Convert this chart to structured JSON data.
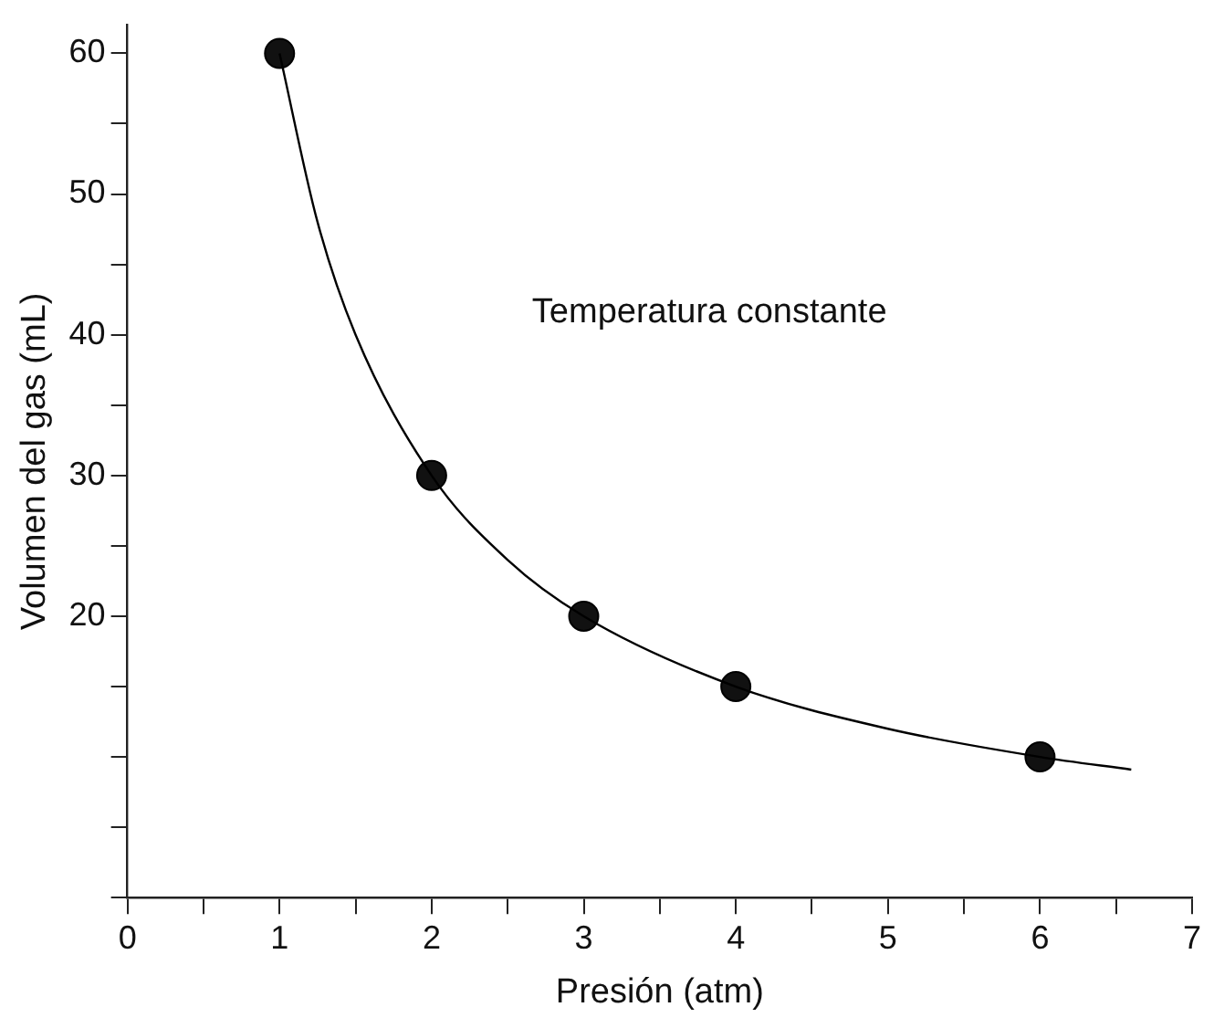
{
  "chart_data": {
    "type": "scatter",
    "xlabel": "Presión (atm)",
    "ylabel": "Volumen del gas (mL)",
    "annotations": [
      "Temperatura constante"
    ],
    "xlim": [
      0,
      7
    ],
    "xticks": [
      0,
      {
        "value": 0.5,
        "label": null
      },
      1,
      {
        "value": 1.5,
        "label": null
      },
      2,
      {
        "value": 2.5,
        "label": null
      },
      3,
      {
        "value": 3.5,
        "label": null
      },
      4,
      {
        "value": 4.5,
        "label": null
      },
      5,
      {
        "value": 5.5,
        "label": null
      },
      6,
      {
        "value": 6.5,
        "label": null
      },
      7
    ],
    "ylim": [
      0,
      62
    ],
    "yticks": [
      {
        "value": 0,
        "label": null
      },
      {
        "value": 5,
        "label": null
      },
      {
        "value": 10,
        "label": null
      },
      {
        "value": 15,
        "label": null
      },
      20,
      {
        "value": 25,
        "label": null
      },
      30,
      {
        "value": 35,
        "label": null
      },
      40,
      {
        "value": 45,
        "label": null
      },
      50,
      {
        "value": 55,
        "label": null
      },
      60
    ],
    "grid": false,
    "legend": false,
    "series": [
      {
        "type": "line",
        "marker": "none",
        "color": "#000000",
        "x": [
          1,
          1.25,
          1.5,
          2,
          2.5,
          3,
          4,
          5,
          6,
          6.6
        ],
        "values": [
          60,
          48,
          40,
          30,
          24,
          20,
          15,
          12,
          10,
          9.1
        ]
      },
      {
        "marker": "circle",
        "color": "#111111",
        "x": [
          1,
          2,
          3,
          4,
          6
        ],
        "values": [
          60,
          30,
          20,
          15,
          10
        ]
      }
    ]
  }
}
